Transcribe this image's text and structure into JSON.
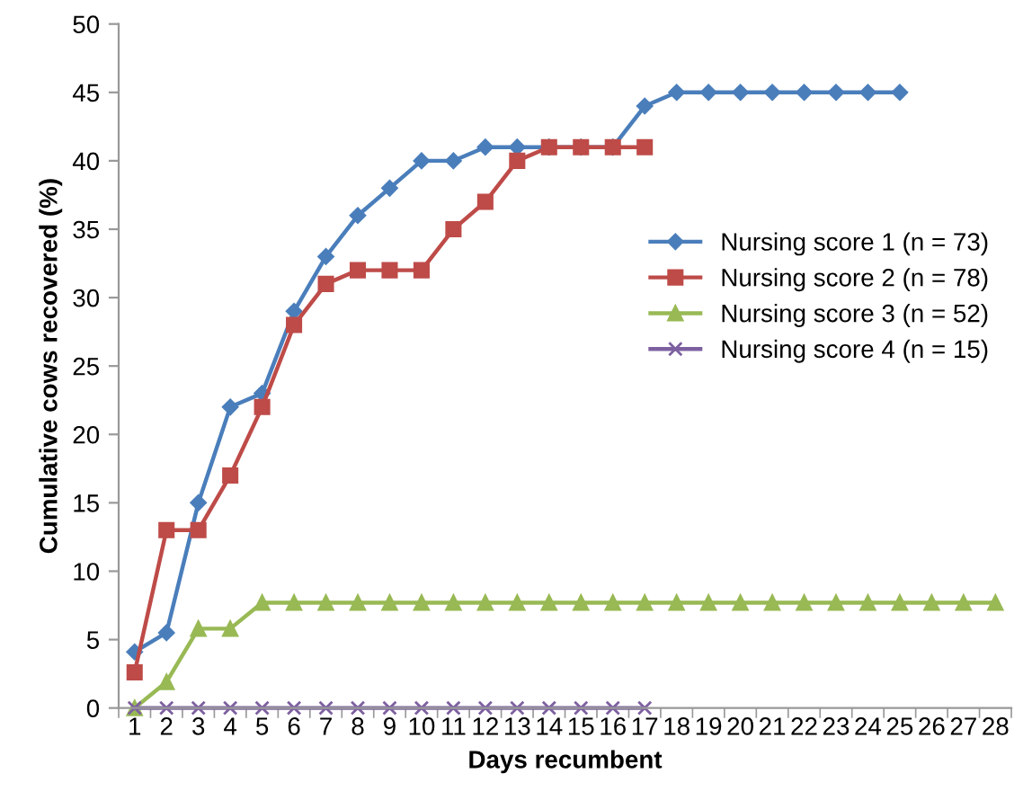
{
  "chart_data": {
    "type": "line",
    "xlabel": "Days recumbent",
    "ylabel": "Cumulative cows recovered (%)",
    "categories": [
      "1",
      "2",
      "3",
      "4",
      "5",
      "6",
      "7",
      "8",
      "9",
      "10",
      "11",
      "12",
      "13",
      "14",
      "15",
      "16",
      "17",
      "18",
      "19",
      "20",
      "21",
      "22",
      "23",
      "24",
      "25",
      "26",
      "27",
      "28"
    ],
    "ylim": [
      0,
      50
    ],
    "yticks": [
      0,
      5,
      10,
      15,
      20,
      25,
      30,
      35,
      40,
      45,
      50
    ],
    "grid": false,
    "legend": "right",
    "series": [
      {
        "name": "Nursing score 1 (n = 73)",
        "color": "#4a7ebb",
        "marker": "diamond",
        "values": [
          4.1,
          5.5,
          15,
          22,
          23,
          29,
          33,
          36,
          38,
          40,
          40,
          41,
          41,
          41,
          41,
          41,
          44,
          45,
          45,
          45,
          45,
          45,
          45,
          45,
          45,
          null,
          null,
          null
        ]
      },
      {
        "name": "Nursing score 2 (n = 78)",
        "color": "#be4b48",
        "marker": "square",
        "values": [
          2.6,
          13,
          13,
          17,
          22,
          28,
          31,
          32,
          32,
          32,
          35,
          37,
          40,
          41,
          41,
          41,
          41,
          null,
          null,
          null,
          null,
          null,
          null,
          null,
          null,
          null,
          null,
          null
        ]
      },
      {
        "name": "Nursing score 3 (n = 52)",
        "color": "#98b954",
        "marker": "triangle",
        "values": [
          0,
          1.9,
          5.8,
          5.8,
          7.7,
          7.7,
          7.7,
          7.7,
          7.7,
          7.7,
          7.7,
          7.7,
          7.7,
          7.7,
          7.7,
          7.7,
          7.7,
          7.7,
          7.7,
          7.7,
          7.7,
          7.7,
          7.7,
          7.7,
          7.7,
          7.7,
          7.7,
          7.7
        ]
      },
      {
        "name": "Nursing score 4 (n = 15)",
        "color": "#7d60a0",
        "marker": "cross",
        "values": [
          0,
          0,
          0,
          0,
          0,
          0,
          0,
          0,
          0,
          0,
          0,
          0,
          0,
          0,
          0,
          0,
          0,
          null,
          null,
          null,
          null,
          null,
          null,
          null,
          null,
          null,
          null,
          null
        ]
      }
    ]
  }
}
